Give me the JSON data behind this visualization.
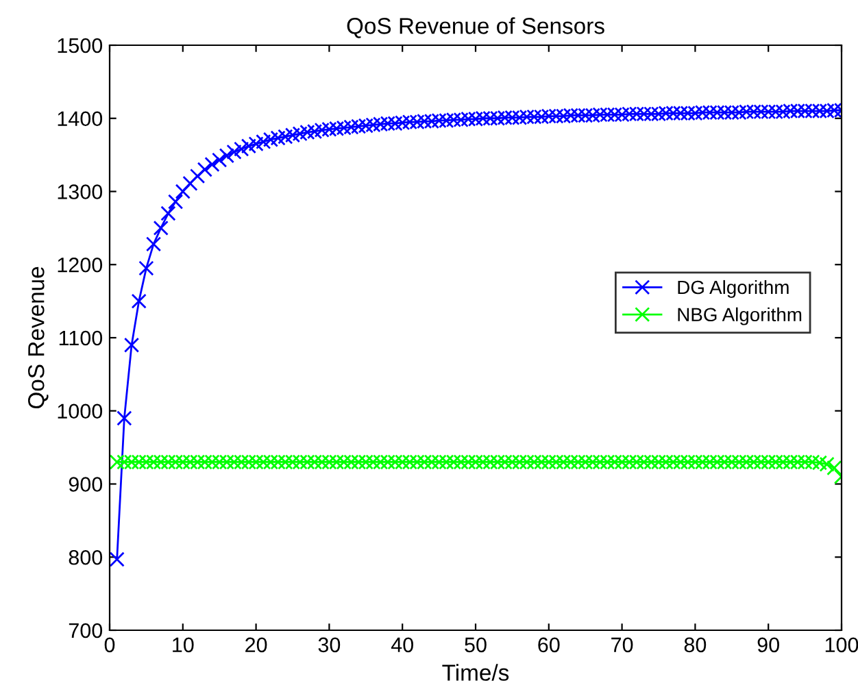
{
  "chart_data": {
    "type": "line",
    "title": "QoS Revenue of Sensors",
    "xlabel": "Time/s",
    "ylabel": "QoS Revenue",
    "x": [
      1,
      2,
      3,
      4,
      5,
      6,
      7,
      8,
      9,
      10,
      11,
      12,
      13,
      14,
      15,
      16,
      17,
      18,
      19,
      20,
      21,
      22,
      23,
      24,
      25,
      26,
      27,
      28,
      29,
      30,
      31,
      32,
      33,
      34,
      35,
      36,
      37,
      38,
      39,
      40,
      41,
      42,
      43,
      44,
      45,
      46,
      47,
      48,
      49,
      50,
      51,
      52,
      53,
      54,
      55,
      56,
      57,
      58,
      59,
      60,
      61,
      62,
      63,
      64,
      65,
      66,
      67,
      68,
      69,
      70,
      71,
      72,
      73,
      74,
      75,
      76,
      77,
      78,
      79,
      80,
      81,
      82,
      83,
      84,
      85,
      86,
      87,
      88,
      89,
      90,
      91,
      92,
      93,
      94,
      95,
      96,
      97,
      98,
      99,
      100
    ],
    "series": [
      {
        "name": "DG Algorithm",
        "color": "#0000ff",
        "values": [
          797,
          990,
          1090,
          1150,
          1195,
          1228,
          1250,
          1270,
          1286,
          1300,
          1311,
          1321,
          1330,
          1337,
          1343,
          1349,
          1354,
          1358,
          1362,
          1365,
          1368,
          1371,
          1373,
          1375,
          1377,
          1379,
          1381,
          1382,
          1384,
          1385,
          1386,
          1387,
          1388,
          1389,
          1390,
          1391,
          1392,
          1393,
          1393,
          1394,
          1395,
          1395,
          1396,
          1396,
          1397,
          1397,
          1398,
          1398,
          1399,
          1399,
          1400,
          1400,
          1400,
          1401,
          1401,
          1401,
          1402,
          1402,
          1402,
          1403,
          1403,
          1403,
          1404,
          1404,
          1404,
          1404,
          1405,
          1405,
          1405,
          1405,
          1406,
          1406,
          1406,
          1406,
          1406,
          1407,
          1407,
          1407,
          1407,
          1407,
          1408,
          1408,
          1408,
          1408,
          1408,
          1408,
          1409,
          1409,
          1409,
          1409,
          1409,
          1409,
          1410,
          1410,
          1410,
          1410,
          1410,
          1410,
          1411,
          1411
        ]
      },
      {
        "name": "NBG Algorithm",
        "color": "#00ff00",
        "values": [
          930,
          930,
          930,
          930,
          930,
          930,
          930,
          930,
          930,
          930,
          930,
          930,
          930,
          930,
          930,
          930,
          930,
          930,
          930,
          930,
          930,
          930,
          930,
          930,
          930,
          930,
          930,
          930,
          930,
          930,
          930,
          930,
          930,
          930,
          930,
          930,
          930,
          930,
          930,
          930,
          930,
          930,
          930,
          930,
          930,
          930,
          930,
          930,
          930,
          930,
          930,
          930,
          930,
          930,
          930,
          930,
          930,
          930,
          930,
          930,
          930,
          930,
          930,
          930,
          930,
          930,
          930,
          930,
          930,
          930,
          930,
          930,
          930,
          930,
          930,
          930,
          930,
          930,
          930,
          930,
          930,
          930,
          930,
          930,
          930,
          930,
          930,
          930,
          930,
          930,
          930,
          930,
          930,
          930,
          930,
          930,
          929,
          927,
          922,
          910
        ]
      }
    ],
    "xlim": [
      0,
      100
    ],
    "xticks": [
      0,
      10,
      20,
      30,
      40,
      50,
      60,
      70,
      80,
      90,
      100
    ],
    "ylim": [
      700,
      1500
    ],
    "yticks": [
      700,
      800,
      900,
      1000,
      1100,
      1200,
      1300,
      1400,
      1500
    ],
    "marker": "cross",
    "line_style": "solid",
    "legend": "right",
    "grid": false
  }
}
